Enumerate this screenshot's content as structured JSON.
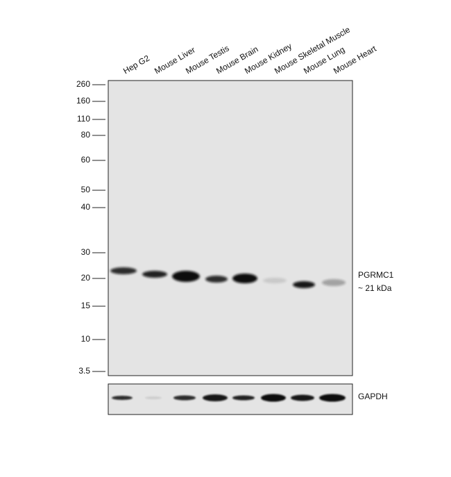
{
  "lanes": [
    "Hep G2",
    "Mouse Liver",
    "Mouse Testis",
    "Mouse Brain",
    "Mouse Kidney",
    "Mouse Skeletal Muscle",
    "Mouse Lung",
    "Mouse Heart"
  ],
  "markers": [
    "260",
    "160",
    "110",
    "80",
    "60",
    "50",
    "40",
    "30",
    "20",
    "15",
    "10",
    "3.5"
  ],
  "target": {
    "name": "PGRMC1",
    "size": "~ 21 kDa"
  },
  "loading_control": "GAPDH"
}
